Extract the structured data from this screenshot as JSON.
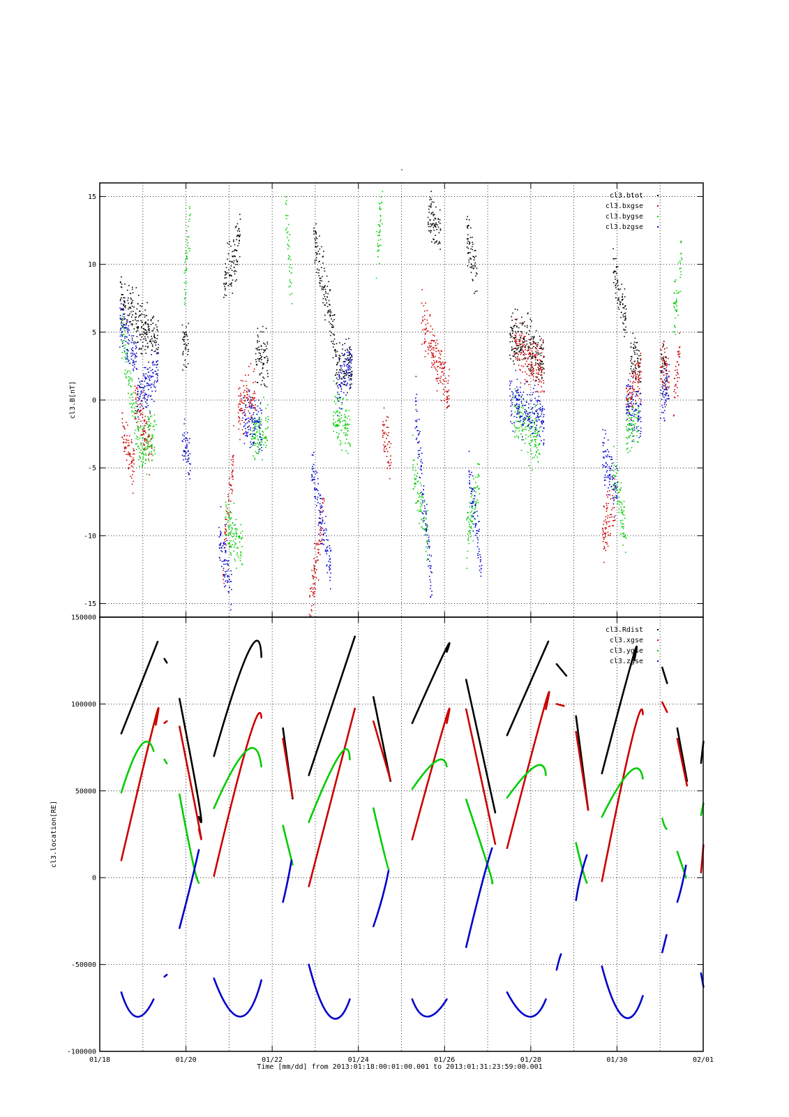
{
  "top_marker": "-",
  "footer": {
    "time_label": "Time [mm/dd]  from 2013:01:18:00:01:00.001  to  2013:01:31:23:59:00.001"
  },
  "x_axis": {
    "start_day": 18,
    "end_day": 32,
    "tick_days": [
      18,
      20,
      22,
      24,
      26,
      28,
      30,
      32
    ],
    "tick_labels": [
      "01/18",
      "01/20",
      "01/22",
      "01/24",
      "01/26",
      "01/28",
      "01/30",
      "02/01"
    ],
    "minor_grid_step_days": 1
  },
  "chart_data": [
    {
      "type": "scatter",
      "title": "",
      "xlabel": "Time [mm/dd]",
      "ylabel": "cl3.B[nT]",
      "xlim": [
        "2013-01-18",
        "2013-02-01"
      ],
      "ylim": [
        -16,
        16
      ],
      "yticks": [
        -15,
        -10,
        -5,
        0,
        5,
        10,
        15
      ],
      "ytick_labels": [
        "-15",
        "-10",
        "-5",
        "0",
        "5",
        "10",
        "15"
      ],
      "grid": true,
      "legend": "top-right",
      "series": [
        {
          "name": "cl3.btot",
          "color": "#000000",
          "segments": [
            [
              18.45,
              18.62,
              7.5,
              6.0
            ],
            [
              18.62,
              19.05,
              7.0,
              5.0
            ],
            [
              19.05,
              19.35,
              5.5,
              4.0
            ],
            [
              19.9,
              20.05,
              4.0,
              4.2
            ],
            [
              20.85,
              21.25,
              8.5,
              12.0
            ],
            [
              21.6,
              21.9,
              3.5,
              3.0
            ],
            [
              22.95,
              23.45,
              12.0,
              4.5
            ],
            [
              23.45,
              23.85,
              2.0,
              2.5
            ],
            [
              25.6,
              25.9,
              14.0,
              12.0
            ],
            [
              26.5,
              26.75,
              12.0,
              9.0
            ],
            [
              27.5,
              28.3,
              5.0,
              3.0
            ],
            [
              29.9,
              30.2,
              10.0,
              6.0
            ],
            [
              30.3,
              30.55,
              3.0,
              2.5
            ],
            [
              31.0,
              31.15,
              2.5,
              2.0
            ]
          ]
        },
        {
          "name": "cl3.bxgse",
          "color": "#cc0000",
          "segments": [
            [
              18.5,
              18.8,
              -2.0,
              -5.0
            ],
            [
              18.8,
              19.2,
              0.0,
              -3.5
            ],
            [
              20.85,
              21.1,
              -12.0,
              -4.0
            ],
            [
              21.2,
              21.6,
              -1.0,
              1.0
            ],
            [
              22.85,
              23.2,
              -15.0,
              -8.0
            ],
            [
              24.55,
              24.75,
              -2.0,
              -4.0
            ],
            [
              25.45,
              26.1,
              6.0,
              0.5
            ],
            [
              27.6,
              28.3,
              4.0,
              2.0
            ],
            [
              29.65,
              29.95,
              -10.0,
              -7.0
            ],
            [
              30.2,
              30.55,
              0.0,
              2.0
            ],
            [
              31.0,
              31.2,
              2.5,
              2.0
            ],
            [
              31.3,
              31.45,
              0.0,
              4.0
            ]
          ]
        },
        {
          "name": "cl3.bygse",
          "color": "#00cc00",
          "segments": [
            [
              18.5,
              18.9,
              5.0,
              -3.0
            ],
            [
              18.9,
              19.3,
              -4.0,
              -2.0
            ],
            [
              19.95,
              20.1,
              8.0,
              14.0
            ],
            [
              20.9,
              21.3,
              -9.0,
              -11.0
            ],
            [
              21.5,
              21.9,
              -3.0,
              -2.0
            ],
            [
              22.3,
              22.45,
              14.0,
              8.0
            ],
            [
              23.4,
              23.8,
              -1.0,
              -2.0
            ],
            [
              24.4,
              24.55,
              10.0,
              15.0
            ],
            [
              25.25,
              25.6,
              -5.0,
              -10.0
            ],
            [
              26.5,
              26.8,
              -10.0,
              -6.0
            ],
            [
              27.6,
              28.2,
              -1.0,
              -3.0
            ],
            [
              29.9,
              30.2,
              -5.0,
              -10.0
            ],
            [
              30.2,
              30.5,
              -2.0,
              -1.5
            ],
            [
              31.3,
              31.5,
              6.0,
              10.0
            ]
          ]
        },
        {
          "name": "cl3.bzgse",
          "color": "#0000cc",
          "segments": [
            [
              18.45,
              18.85,
              6.0,
              3.0
            ],
            [
              18.85,
              19.35,
              0.0,
              2.5
            ],
            [
              19.9,
              20.1,
              -3.0,
              -4.0
            ],
            [
              20.75,
              21.05,
              -10.0,
              -14.0
            ],
            [
              21.3,
              21.75,
              -1.0,
              -2.0
            ],
            [
              22.9,
              23.35,
              -5.0,
              -12.0
            ],
            [
              23.5,
              23.85,
              1.0,
              3.0
            ],
            [
              25.3,
              25.7,
              0.0,
              -14.0
            ],
            [
              26.55,
              26.85,
              -5.0,
              -12.0
            ],
            [
              27.5,
              28.3,
              0.0,
              -1.5
            ],
            [
              29.65,
              30.0,
              -4.0,
              -7.0
            ],
            [
              30.2,
              30.55,
              0.0,
              -1.0
            ],
            [
              31.0,
              31.2,
              0.0,
              1.0
            ]
          ]
        }
      ]
    },
    {
      "type": "line",
      "title": "",
      "xlabel": "Time [mm/dd]",
      "ylabel": "cl3.location[RE]",
      "xlim": [
        "2013-01-18",
        "2013-02-01"
      ],
      "ylim": [
        -100000,
        150000
      ],
      "yticks": [
        -100000,
        -50000,
        0,
        50000,
        100000,
        150000
      ],
      "ytick_labels": [
        "-100000",
        "-50000",
        "0",
        "50000",
        "100000",
        "150000"
      ],
      "grid": true,
      "legend": "top-right",
      "series": [
        {
          "name": "cl3.Rdist",
          "color": "#000000",
          "arcs": [
            [
              18.5,
              83000,
              19.25,
              130000,
              19.25,
              130000
            ],
            [
              19.5,
              126000,
              19.55,
              124000,
              19.55,
              124000
            ],
            [
              19.85,
              103000,
              20.3,
              43000,
              20.3,
              35000
            ],
            [
              20.65,
              70000,
              21.45,
              130000,
              21.75,
              127000
            ],
            [
              22.25,
              86000,
              22.45,
              50000,
              22.45,
              50000
            ],
            [
              22.85,
              59000,
              23.8,
              130000,
              23.8,
              130000
            ],
            [
              24.35,
              104000,
              24.7,
              61000,
              24.7,
              61000
            ],
            [
              25.25,
              89000,
              26.0,
              130000,
              26.05,
              130000
            ],
            [
              26.5,
              114000,
              27.1,
              46000,
              27.1,
              46000
            ],
            [
              27.45,
              82000,
              28.3,
              130000,
              28.3,
              130000
            ],
            [
              28.6,
              123000,
              28.8,
              117000,
              28.8,
              117000
            ],
            [
              29.05,
              93000,
              29.3,
              45000,
              29.3,
              45000
            ],
            [
              29.65,
              60000,
              30.35,
              125000,
              30.4,
              125000
            ],
            [
              31.05,
              121000,
              31.15,
              113000,
              31.15,
              113000
            ],
            [
              31.4,
              86000,
              31.6,
              59000,
              31.6,
              59000
            ],
            [
              31.95,
              66000,
              32.0,
              77000,
              32.0,
              77000
            ]
          ]
        },
        {
          "name": "cl3.xgse",
          "color": "#cc0000",
          "arcs": [
            [
              18.5,
              10000,
              19.25,
              88000,
              19.3,
              88000
            ],
            [
              19.5,
              89000,
              19.55,
              90000,
              19.55,
              90000
            ],
            [
              19.85,
              87000,
              20.3,
              30000,
              20.3,
              28000
            ],
            [
              20.65,
              1000,
              21.45,
              79000,
              21.75,
              92000
            ],
            [
              22.25,
              80000,
              22.45,
              50000,
              22.45,
              50000
            ],
            [
              22.85,
              -5000,
              23.8,
              86000,
              23.8,
              86000
            ],
            [
              24.35,
              90000,
              24.7,
              60000,
              24.7,
              60000
            ],
            [
              25.25,
              22000,
              26.0,
              89000,
              26.05,
              89000
            ],
            [
              26.5,
              97000,
              27.1,
              28000,
              27.1,
              28000
            ],
            [
              27.45,
              17000,
              28.3,
              97000,
              28.35,
              97000
            ],
            [
              28.6,
              100000,
              28.75,
              99000,
              28.75,
              99000
            ],
            [
              29.05,
              84000,
              29.3,
              44000,
              29.3,
              44000
            ],
            [
              29.65,
              -2000,
              30.35,
              80000,
              30.6,
              94000
            ],
            [
              31.05,
              101000,
              31.15,
              96000,
              31.15,
              96000
            ],
            [
              31.4,
              80000,
              31.6,
              56000,
              31.6,
              56000
            ],
            [
              31.95,
              3000,
              32.0,
              17000,
              32.0,
              17000
            ]
          ]
        },
        {
          "name": "cl3.ygse",
          "color": "#00cc00",
          "arcs": [
            [
              18.5,
              49000,
              18.95,
              76000,
              19.25,
              73000
            ],
            [
              19.5,
              68000,
              19.55,
              66000,
              19.55,
              66000
            ],
            [
              19.85,
              48000,
              20.15,
              10000,
              20.3,
              -3000
            ],
            [
              20.65,
              40000,
              21.4,
              73000,
              21.75,
              64000
            ],
            [
              22.25,
              30000,
              22.45,
              10000,
              22.45,
              10000
            ],
            [
              22.85,
              32000,
              23.55,
              70000,
              23.8,
              68000
            ],
            [
              24.35,
              40000,
              24.6,
              14000,
              24.7,
              5000
            ],
            [
              25.25,
              51000,
              25.8,
              67000,
              26.05,
              64000
            ],
            [
              26.5,
              45000,
              27.0,
              7000,
              27.1,
              -3000
            ],
            [
              27.45,
              46000,
              28.1,
              64000,
              28.35,
              59000
            ],
            [
              29.05,
              20000,
              29.2,
              5000,
              29.3,
              -3000
            ],
            [
              29.65,
              35000,
              30.3,
              61000,
              30.6,
              57000
            ],
            [
              31.05,
              34000,
              31.1,
              30000,
              31.15,
              28000
            ],
            [
              31.4,
              15000,
              31.55,
              4000,
              31.6,
              0
            ],
            [
              31.95,
              36000,
              32.0,
              42000,
              32.0,
              42000
            ]
          ]
        },
        {
          "name": "cl3.zgse",
          "color": "#0000cc",
          "arcs": [
            [
              18.5,
              -66000,
              18.85,
              -80000,
              19.25,
              -70000
            ],
            [
              19.5,
              -57000,
              19.55,
              -56000,
              19.55,
              -56000
            ],
            [
              19.85,
              -29000,
              20.1,
              -5000,
              20.3,
              16000
            ],
            [
              20.65,
              -58000,
              21.25,
              -80000,
              21.75,
              -59000
            ],
            [
              22.25,
              -14000,
              22.35,
              -3000,
              22.45,
              10000
            ],
            [
              22.85,
              -50000,
              23.35,
              -80000,
              23.8,
              -70000
            ],
            [
              24.35,
              -28000,
              24.55,
              -12000,
              24.7,
              4000
            ],
            [
              25.25,
              -70000,
              25.6,
              -80000,
              26.05,
              -70000
            ],
            [
              26.5,
              -40000,
              26.85,
              -5000,
              27.1,
              17000
            ],
            [
              27.45,
              -66000,
              27.95,
              -80000,
              28.35,
              -70000
            ],
            [
              28.6,
              -53000,
              28.65,
              -48000,
              28.7,
              -44000
            ],
            [
              29.05,
              -13000,
              29.15,
              0,
              29.3,
              13000
            ],
            [
              29.65,
              -51000,
              30.15,
              -80000,
              30.6,
              -68000
            ],
            [
              31.05,
              -43000,
              31.1,
              -38000,
              31.15,
              -33000
            ],
            [
              31.4,
              -14000,
              31.5,
              -5000,
              31.6,
              7000
            ],
            [
              31.95,
              -55000,
              32.0,
              -62000,
              32.0,
              -62000
            ]
          ]
        }
      ]
    }
  ]
}
